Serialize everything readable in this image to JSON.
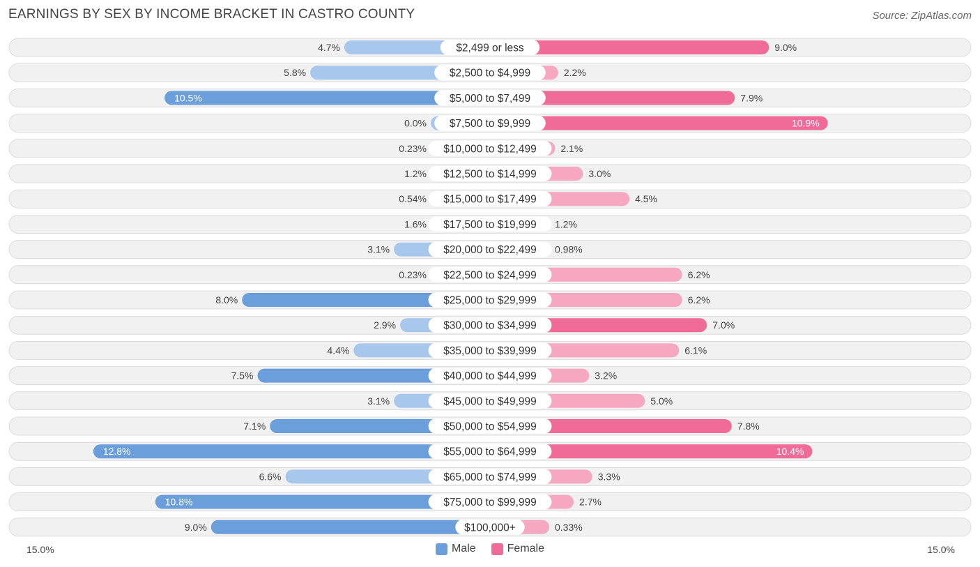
{
  "title": "EARNINGS BY SEX BY INCOME BRACKET IN CASTRO COUNTY",
  "source": "Source: ZipAtlas.com",
  "colors": {
    "male_strong": "#6a9fdb",
    "male_light": "#a8c7ec",
    "female_strong": "#f06b97",
    "female_light": "#f6a8c1"
  },
  "chart_data": {
    "type": "bar",
    "orientation": "diverging-horizontal",
    "title": "EARNINGS BY SEX BY INCOME BRACKET IN CASTRO COUNTY",
    "xlim": [
      -15.0,
      15.0
    ],
    "axis_labels": {
      "left": "15.0%",
      "right": "15.0%"
    },
    "legend": [
      {
        "name": "Male",
        "color": "#6a9fdb"
      },
      {
        "name": "Female",
        "color": "#f06b97"
      }
    ],
    "categories": [
      "$2,499 or less",
      "$2,500 to $4,999",
      "$5,000 to $7,499",
      "$7,500 to $9,999",
      "$10,000 to $12,499",
      "$12,500 to $14,999",
      "$15,000 to $17,499",
      "$17,500 to $19,999",
      "$20,000 to $22,499",
      "$22,500 to $24,999",
      "$25,000 to $29,999",
      "$30,000 to $34,999",
      "$35,000 to $39,999",
      "$40,000 to $44,999",
      "$45,000 to $49,999",
      "$50,000 to $54,999",
      "$55,000 to $64,999",
      "$65,000 to $74,999",
      "$75,000 to $99,999",
      "$100,000+"
    ],
    "series": [
      {
        "name": "Male",
        "values": [
          4.7,
          5.8,
          10.5,
          0.0,
          0.23,
          1.2,
          0.54,
          1.6,
          3.1,
          0.23,
          8.0,
          2.9,
          4.4,
          7.5,
          3.1,
          7.1,
          12.8,
          6.6,
          10.8,
          9.0
        ],
        "labels": [
          "4.7%",
          "5.8%",
          "10.5%",
          "0.0%",
          "0.23%",
          "1.2%",
          "0.54%",
          "1.6%",
          "3.1%",
          "0.23%",
          "8.0%",
          "2.9%",
          "4.4%",
          "7.5%",
          "3.1%",
          "7.1%",
          "12.8%",
          "6.6%",
          "10.8%",
          "9.0%"
        ]
      },
      {
        "name": "Female",
        "values": [
          9.0,
          2.2,
          7.9,
          10.9,
          2.1,
          3.0,
          4.5,
          1.2,
          0.98,
          6.2,
          6.2,
          7.0,
          6.1,
          3.2,
          5.0,
          7.8,
          10.4,
          3.3,
          2.7,
          0.33
        ],
        "labels": [
          "9.0%",
          "2.2%",
          "7.9%",
          "10.9%",
          "2.1%",
          "3.0%",
          "4.5%",
          "1.2%",
          "0.98%",
          "6.2%",
          "6.2%",
          "7.0%",
          "6.1%",
          "3.2%",
          "5.0%",
          "7.8%",
          "10.4%",
          "3.3%",
          "2.7%",
          "0.33%"
        ]
      }
    ]
  }
}
